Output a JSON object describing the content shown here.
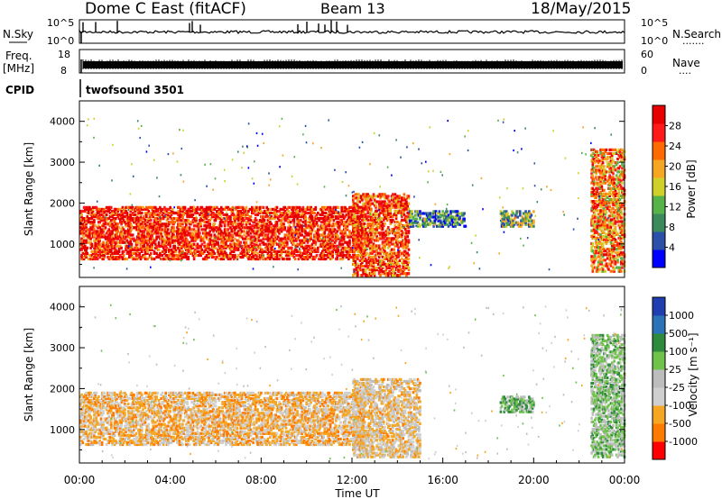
{
  "header": {
    "station": "Dome C East (fitACF)",
    "beam": "Beam 13",
    "date": "18/May/2015"
  },
  "nsky_panel": {
    "left_label": "N.Sky",
    "right_label": "N.Search",
    "right_dots": ".......",
    "left_ticks": [
      "10^5",
      "10^0"
    ],
    "right_ticks": [
      "10^5",
      "10^0"
    ]
  },
  "freq_panel": {
    "left_label_1": "Freq.",
    "left_label_2": "[MHz]",
    "right_label": "Nave",
    "right_dots": "....",
    "left_ticks": [
      "18",
      "8"
    ],
    "right_ticks": [
      "60",
      "0"
    ]
  },
  "cpid_panel": {
    "label": "CPID",
    "program": "twofsound 3501"
  },
  "colors": {
    "power_scale": [
      "#0000ff",
      "#2b50a8",
      "#3a8a5c",
      "#55b34a",
      "#cfd12a",
      "#f5a623",
      "#ff6a00",
      "#ff1a1a",
      "#e60000"
    ],
    "velocity_scale": [
      "#ff0000",
      "#ff7a00",
      "#f5a623",
      "#cfcfcf",
      "#bdbdbd",
      "#6fc34a",
      "#2e8b3d",
      "#2a73b8",
      "#1f3fb0"
    ],
    "ground_scatter": "#bdbdbd"
  },
  "chart_data": [
    {
      "type": "heatmap",
      "name": "power-panel",
      "ylabel": "Slant Range [km]",
      "yticks": [
        "1000",
        "2000",
        "3000",
        "4000"
      ],
      "ylim": [
        180,
        4500
      ],
      "xlim_hours": [
        0,
        24
      ],
      "colorbar_label": "Power [dB]",
      "colorbar_ticks": [
        "4",
        "8",
        "12",
        "16",
        "20",
        "24",
        "28"
      ],
      "colorbar_range": [
        0,
        30
      ],
      "dominant_features": [
        {
          "time_start": "00:00",
          "time_end": "12:30",
          "range_km": [
            600,
            1900
          ],
          "power_dB": 26
        },
        {
          "time_start": "12:00",
          "time_end": "14:30",
          "range_km": [
            200,
            2200
          ],
          "power_dB": 24
        },
        {
          "time_start": "14:30",
          "time_end": "17:00",
          "range_km": [
            1400,
            1800
          ],
          "power_dB": 8
        },
        {
          "time_start": "18:30",
          "time_end": "20:00",
          "range_km": [
            1400,
            1800
          ],
          "power_dB": 12
        },
        {
          "time_start": "22:30",
          "time_end": "24:00",
          "range_km": [
            300,
            3300
          ],
          "power_dB": 20
        }
      ]
    },
    {
      "type": "heatmap",
      "name": "velocity-panel",
      "ylabel": "Slant Range [km]",
      "yticks": [
        "1000",
        "2000",
        "3000",
        "4000"
      ],
      "ylim": [
        180,
        4500
      ],
      "xlim_hours": [
        0,
        24
      ],
      "xlabel": "Time UT",
      "xticks": [
        "00:00",
        "04:00",
        "08:00",
        "12:00",
        "16:00",
        "20:00",
        "00:00"
      ],
      "colorbar_label": "Velocity [m s⁻¹]",
      "colorbar_ticks": [
        "-1000",
        "-500",
        "-100",
        "-25",
        "25",
        "100",
        "500",
        "1000"
      ],
      "dominant_features": [
        {
          "time_start": "00:00",
          "time_end": "12:30",
          "range_km": [
            600,
            1900
          ],
          "velocity_ms": -300
        },
        {
          "time_start": "12:00",
          "time_end": "15:00",
          "range_km": [
            300,
            2200
          ],
          "velocity_ms": -200
        },
        {
          "time_start": "18:30",
          "time_end": "20:00",
          "range_km": [
            1400,
            1800
          ],
          "velocity_ms": 400
        },
        {
          "time_start": "22:30",
          "time_end": "24:00",
          "range_km": [
            300,
            3300
          ],
          "velocity_ms": 300
        }
      ]
    }
  ]
}
